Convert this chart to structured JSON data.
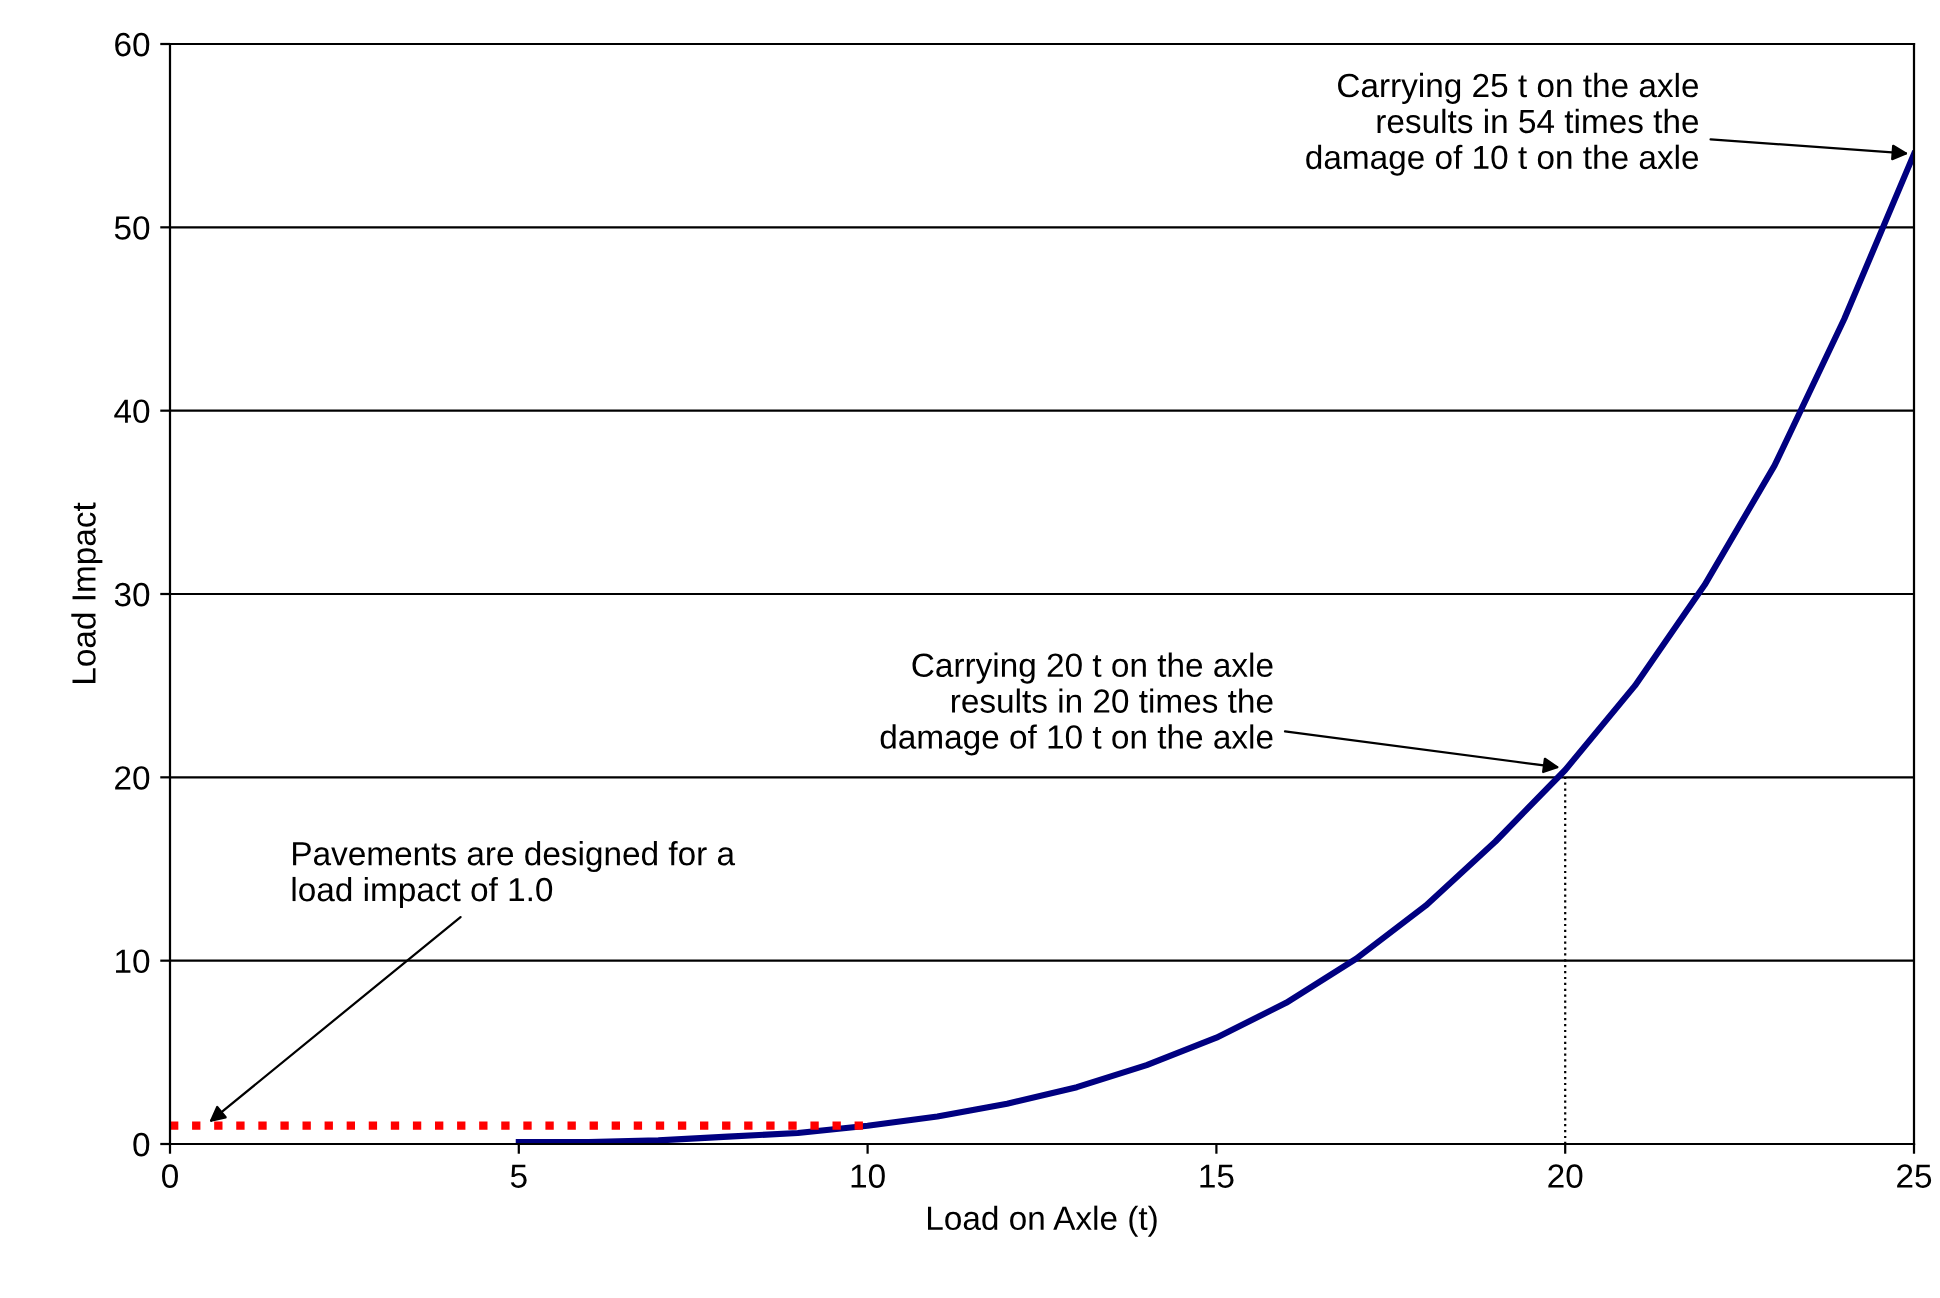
{
  "chart_data": {
    "type": "line",
    "xlabel": "Load on Axle (t)",
    "ylabel": "Load Impact",
    "xlim": [
      0,
      25
    ],
    "xticks": [
      0,
      5,
      10,
      15,
      20,
      25
    ],
    "ylim": [
      0,
      60
    ],
    "yticks": [
      0,
      10,
      20,
      30,
      40,
      50,
      60
    ],
    "grid": "y",
    "marker": "none",
    "series": [
      {
        "color": "#000080",
        "line_style": "solid",
        "x": [
          5,
          6,
          7,
          8,
          9,
          10,
          11,
          12,
          13,
          14,
          15,
          16,
          17,
          18,
          19,
          20,
          21,
          22,
          23,
          24,
          25
        ],
        "values": [
          0.1,
          0.1,
          0.2,
          0.4,
          0.6,
          1,
          1.5,
          2.2,
          3.1,
          4.3,
          5.8,
          7.7,
          10.1,
          13,
          16.5,
          20.4,
          25,
          30.5,
          37,
          45,
          54
        ]
      },
      {
        "color": "#ff0000",
        "line_style": "dotted",
        "x": [
          0,
          10
        ],
        "values": [
          1,
          1
        ]
      },
      {
        "color": "#000000",
        "line_style": "dotted",
        "x": [
          20,
          20
        ],
        "values": [
          0,
          20
        ]
      }
    ],
    "annotations": [
      {
        "text": "Pavements are designed for a\nload impact of 1.0",
        "x": 0.5,
        "y": 1
      },
      {
        "text": "Carrying 20 t on the axle\nresults in 20 times the\ndamage of 10 t on the axle",
        "x": 20,
        "y": 20.5
      },
      {
        "text": "Carrying 25 t on the axle\nresults in 54 times the\ndamage of 10 t on the axle",
        "x": 25,
        "y": 54
      }
    ]
  }
}
